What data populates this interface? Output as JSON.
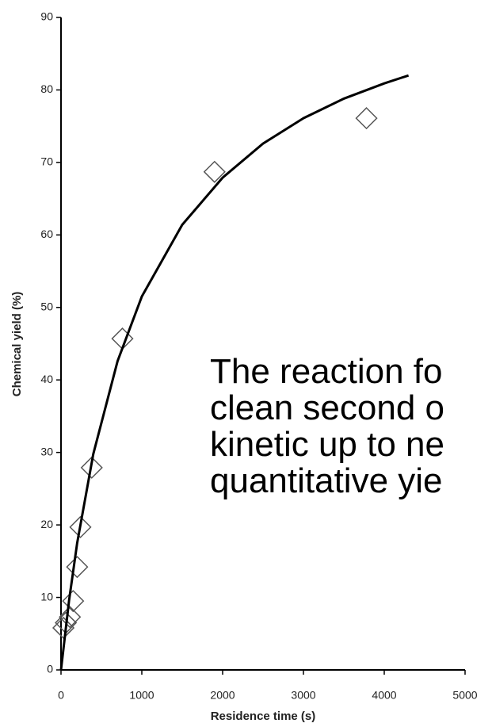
{
  "chart_data": {
    "type": "scatter",
    "xlabel": "Residence time (s)",
    "ylabel": "Chemical yield (%)",
    "xlim": [
      0,
      5000
    ],
    "ylim": [
      0,
      90
    ],
    "xticks": [
      0,
      1000,
      2000,
      3000,
      4000,
      5000
    ],
    "yticks": [
      0,
      10,
      20,
      30,
      40,
      50,
      60,
      70,
      80,
      90
    ],
    "grid": false,
    "series": [
      {
        "type": "scatter",
        "color": "#555555",
        "x": [
          30,
          60,
          110,
          150,
          200,
          240,
          380,
          760,
          1900,
          3780
        ],
        "values": [
          5.8,
          6.5,
          7.3,
          9.5,
          14.2,
          19.7,
          27.9,
          45.7,
          68.7,
          76.1
        ]
      },
      {
        "type": "line",
        "color": "#000000",
        "x": [
          0,
          100,
          200,
          400,
          700,
          1000,
          1500,
          2000,
          2500,
          3000,
          3500,
          4000,
          4300
        ],
        "values": [
          0,
          9.6,
          17.5,
          29.8,
          42.6,
          51.5,
          61.4,
          67.9,
          72.6,
          76.1,
          78.8,
          80.9,
          82.0
        ]
      }
    ],
    "annotation": [
      "The reaction fo",
      "clean second o",
      "kinetic up to ne",
      "quantitative yie"
    ]
  }
}
